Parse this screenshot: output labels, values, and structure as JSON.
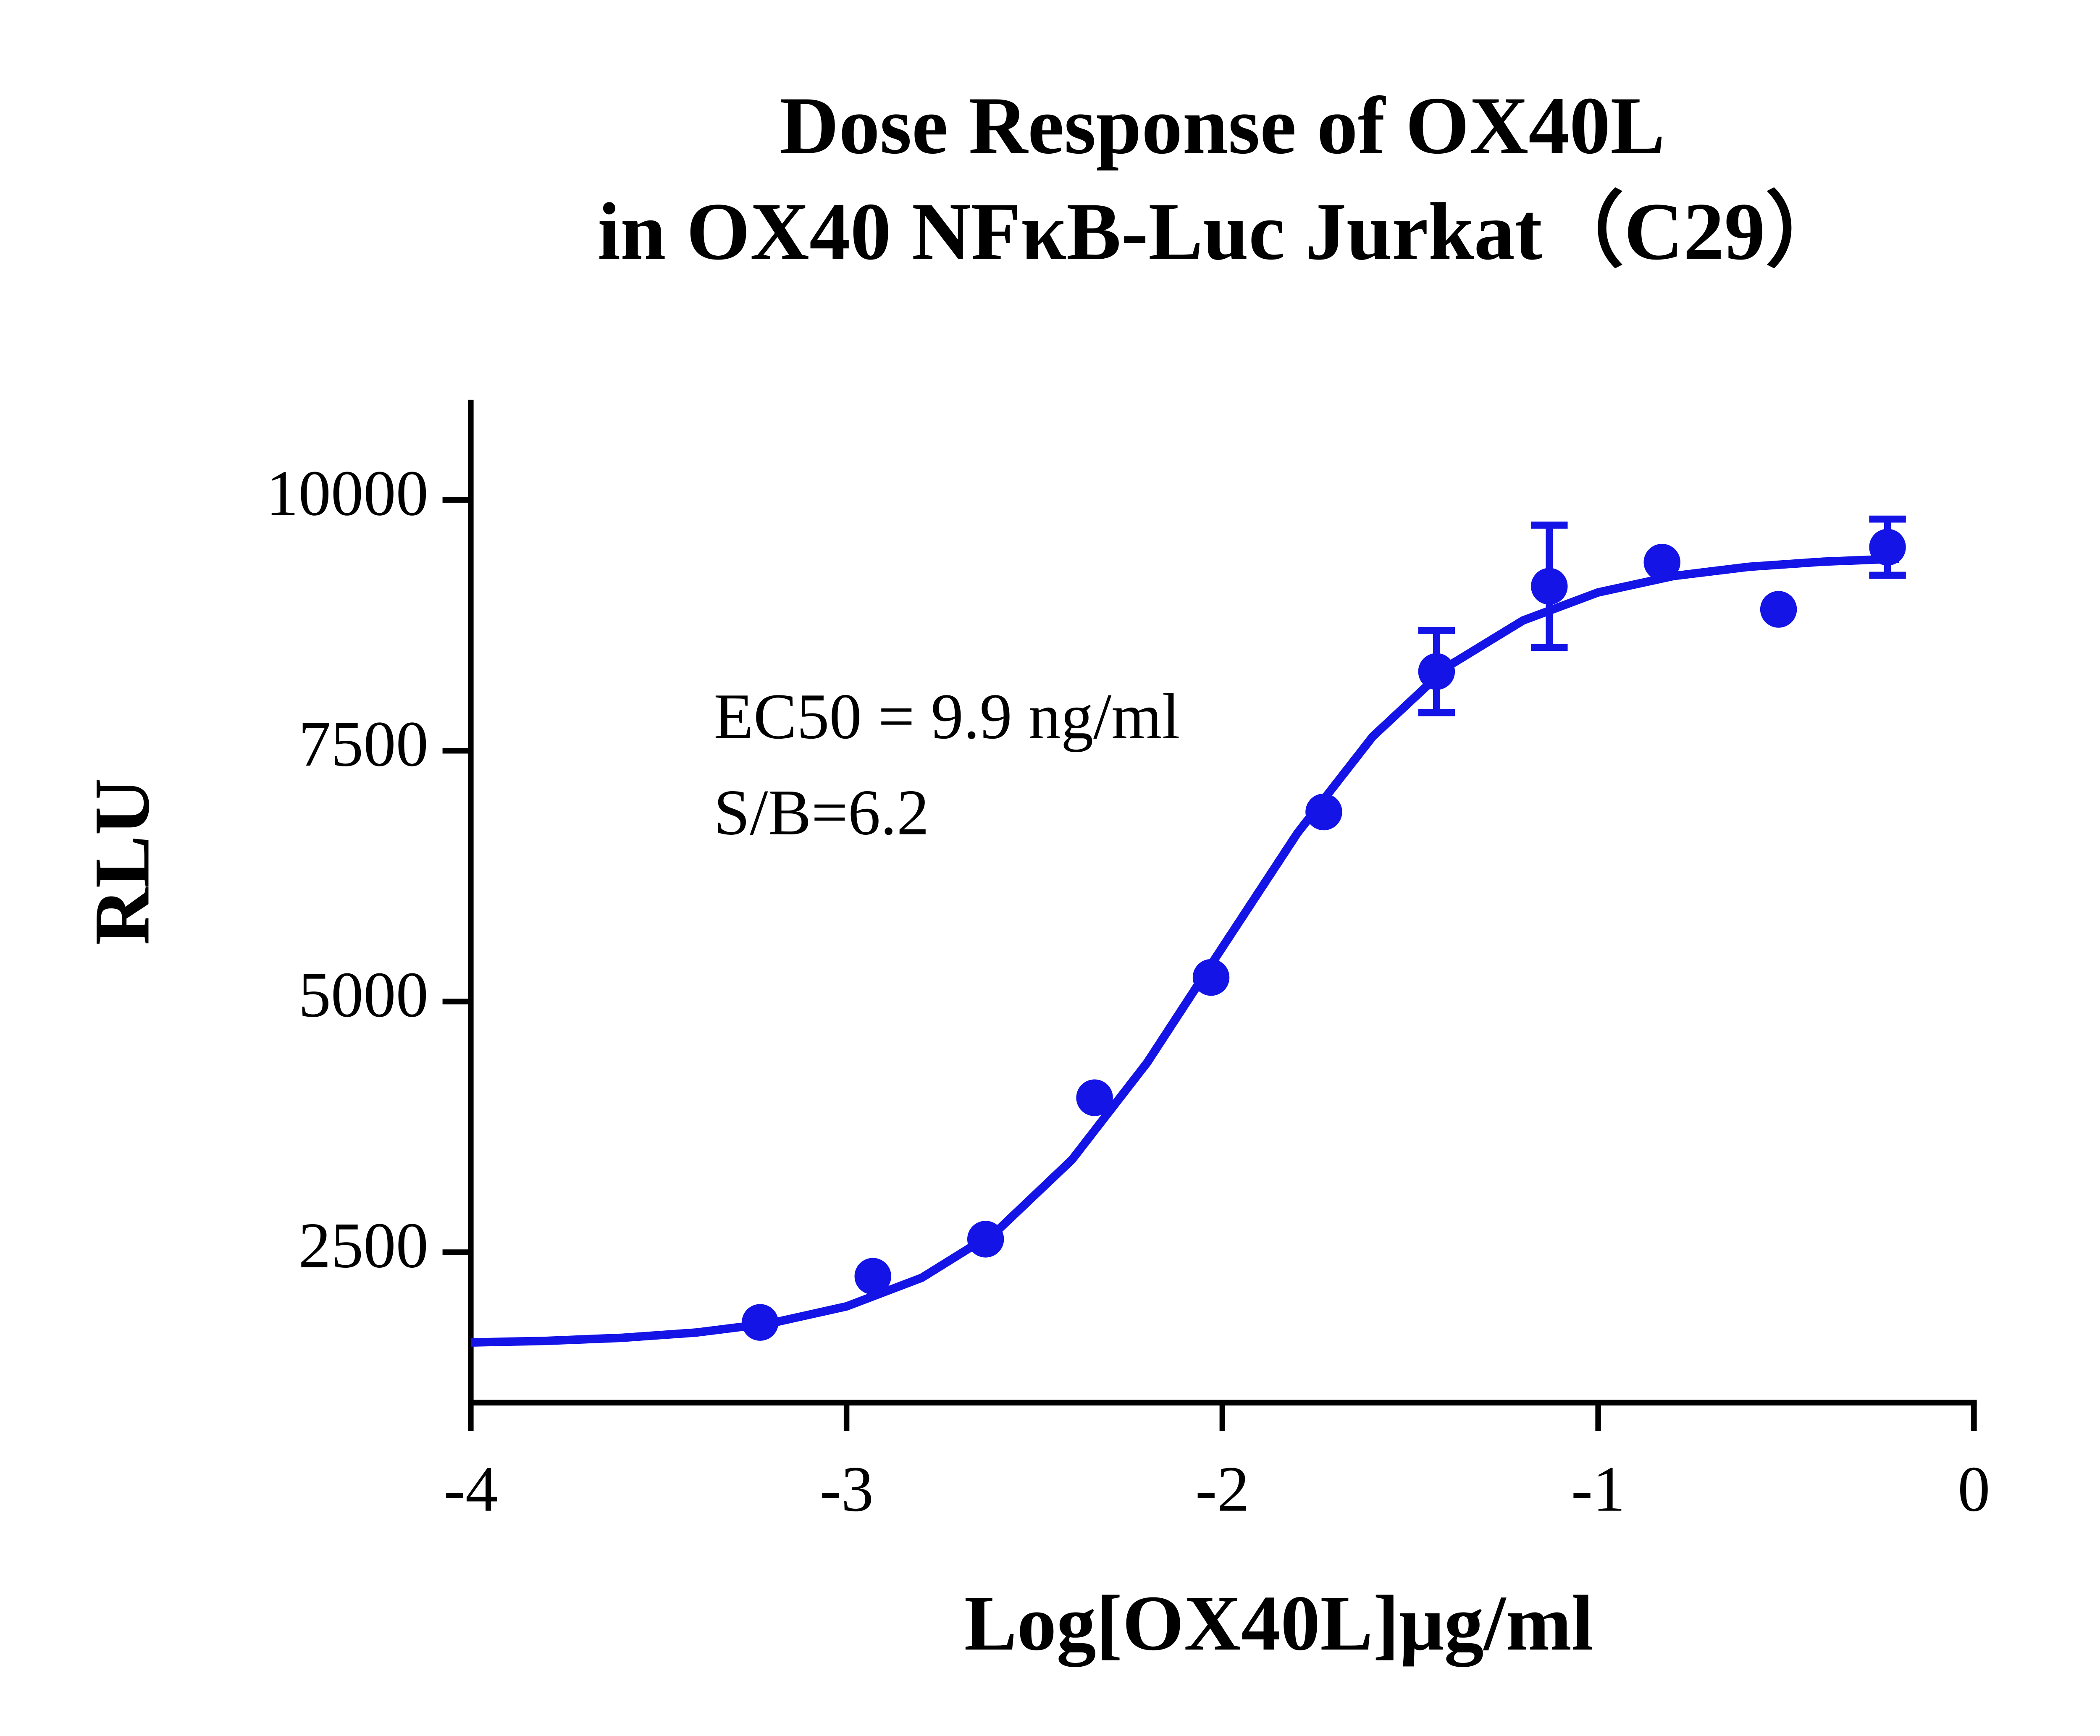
{
  "chart_data": {
    "type": "scatter",
    "title": [
      "Dose Response of OX40L",
      "in OX40 NFκB-Luc Jurkat（C29）"
    ],
    "x_label": "Log[OX40L]μg/ml",
    "y_label": "RLU",
    "annotations": [
      "EC50 = 9.9 ng/ml",
      "S/B=6.2"
    ],
    "xlim": [
      -4,
      0
    ],
    "xticks": [
      -4,
      -3,
      -2,
      -1,
      0
    ],
    "ylim": [
      1000,
      11000
    ],
    "yticks": [
      2500,
      5000,
      7500,
      10000
    ],
    "series": [
      {
        "color": "#1414e6",
        "x": [
          -3.23,
          -2.93,
          -2.63,
          -2.34,
          -2.03,
          -1.73,
          -1.43,
          -1.13,
          -0.83,
          -0.52,
          -0.23
        ],
        "values": [
          1800,
          2260,
          2630,
          4040,
          5240,
          6890,
          8290,
          9140,
          9380,
          8910,
          9530
        ],
        "errors": [
          null,
          null,
          null,
          null,
          null,
          null,
          410,
          610,
          null,
          null,
          280
        ]
      }
    ],
    "curve": {
      "color": "#1414e6",
      "x": [
        -4,
        -3.8,
        -3.6,
        -3.4,
        -3.2,
        -3.0,
        -2.8,
        -2.6,
        -2.4,
        -2.2,
        -2.0,
        -1.8,
        -1.6,
        -1.4,
        -1.2,
        -1.0,
        -0.8,
        -0.6,
        -0.4,
        -0.2
      ],
      "values": [
        1600,
        1616,
        1646,
        1699,
        1793,
        1960,
        2245,
        2711,
        3423,
        4391,
        5539,
        6680,
        7641,
        8341,
        8799,
        9079,
        9242,
        9334,
        9386,
        9415
      ]
    }
  }
}
